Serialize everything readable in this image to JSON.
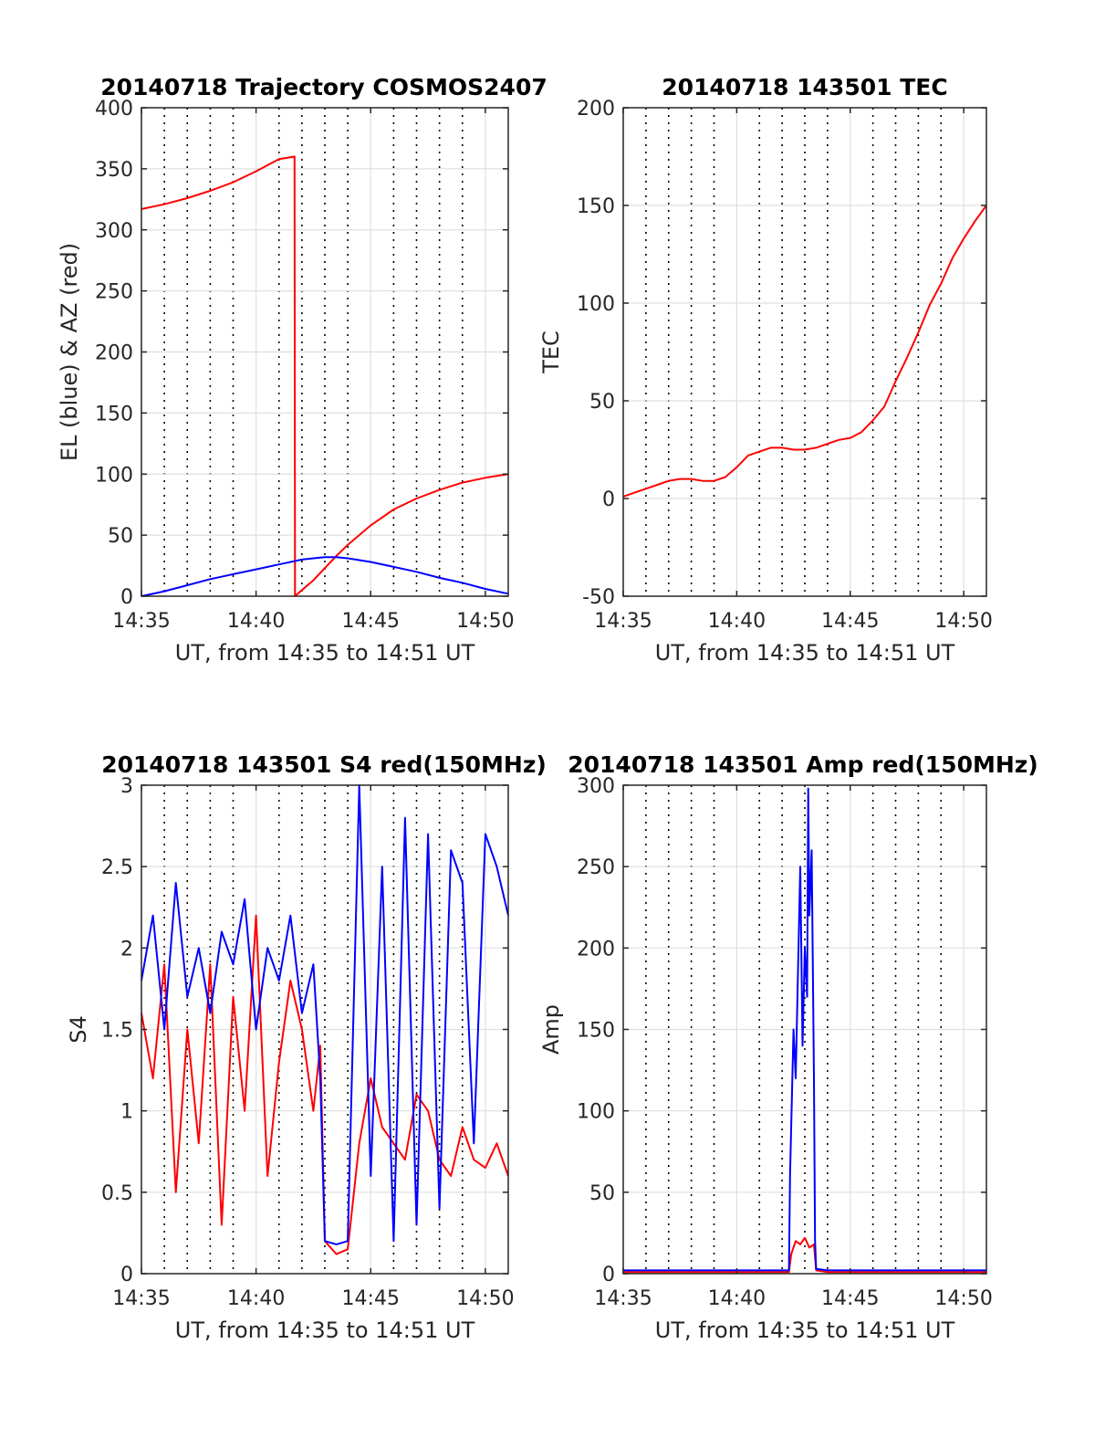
{
  "chart_data": [
    {
      "type": "line",
      "title": "20140718 Trajectory COSMOS2407",
      "xlabel": "UT, from 14:35 to 14:51 UT",
      "ylabel": "EL (blue) & AZ (red)",
      "xlim": [
        0,
        16
      ],
      "ylim": [
        0,
        400
      ],
      "xtick_labels": [
        "14:35",
        "14:40",
        "14:45",
        "14:50"
      ],
      "ytick_labels": [
        "0",
        "50",
        "100",
        "150",
        "200",
        "250",
        "300",
        "350",
        "400"
      ],
      "grid": true,
      "series": [
        {
          "color": "#ff0000",
          "x": [
            0,
            1,
            2,
            3,
            4,
            5,
            6,
            6.68,
            6.7,
            7,
            7.5,
            8,
            8.5,
            9,
            10,
            11,
            12,
            13,
            14,
            15,
            16
          ],
          "y": [
            317,
            321,
            326,
            332,
            339,
            348,
            358,
            360,
            0,
            5,
            13,
            23,
            33,
            42,
            58,
            71,
            80,
            87,
            93,
            97,
            100
          ]
        },
        {
          "color": "#0000ff",
          "x": [
            0,
            1,
            2,
            3,
            4,
            5,
            6,
            7,
            7.5,
            8,
            8.5,
            9,
            10,
            11,
            12,
            13,
            14,
            15,
            16
          ],
          "y": [
            0,
            4,
            9,
            14,
            18,
            22,
            26,
            30,
            31,
            32,
            32,
            31,
            28,
            24,
            20,
            15,
            11,
            6,
            2
          ]
        }
      ]
    },
    {
      "type": "line",
      "title": "20140718 143501 TEC",
      "xlabel": "UT, from 14:35 to 14:51 UT",
      "ylabel": "TEC",
      "xlim": [
        0,
        16
      ],
      "ylim": [
        -50,
        200
      ],
      "xtick_labels": [
        "14:35",
        "14:40",
        "14:45",
        "14:50"
      ],
      "ytick_labels": [
        "-50",
        "0",
        "50",
        "100",
        "150",
        "200"
      ],
      "grid": true,
      "series": [
        {
          "color": "#ff0000",
          "x": [
            0,
            0.5,
            1,
            1.5,
            2,
            2.5,
            3,
            3.5,
            4,
            4.5,
            5,
            5.5,
            6,
            6.5,
            7,
            7.5,
            8,
            8.5,
            9,
            9.5,
            10,
            10.5,
            11,
            11.5,
            12,
            12.5,
            13,
            13.5,
            14,
            14.5,
            15,
            15.5,
            16
          ],
          "y": [
            1,
            3,
            5,
            7,
            9,
            10,
            10,
            9,
            9,
            11,
            16,
            22,
            24,
            26,
            26,
            25,
            25,
            26,
            28,
            30,
            31,
            34,
            40,
            47,
            60,
            72,
            85,
            99,
            110,
            123,
            133,
            142,
            150
          ]
        }
      ]
    },
    {
      "type": "line",
      "title": "20140718 143501 S4 red(150MHz)",
      "xlabel": "UT, from 14:35 to 14:51 UT",
      "ylabel": "S4",
      "xlim": [
        0,
        16
      ],
      "ylim": [
        0,
        3
      ],
      "xtick_labels": [
        "14:35",
        "14:40",
        "14:45",
        "14:50"
      ],
      "ytick_labels": [
        "0",
        "0.5",
        "1",
        "1.5",
        "2",
        "2.5",
        "3"
      ],
      "grid": true,
      "series": [
        {
          "color": "#ff0000",
          "x": [
            0,
            0.5,
            1,
            1.5,
            2,
            2.5,
            3,
            3.5,
            4,
            4.5,
            5,
            5.5,
            6,
            6.5,
            7,
            7.5,
            7.8,
            8,
            8.5,
            9,
            9.5,
            10,
            10.5,
            11,
            11.5,
            12,
            12.5,
            13,
            13.5,
            14,
            14.5,
            15,
            15.5,
            16
          ],
          "y": [
            1.6,
            1.2,
            1.9,
            0.5,
            1.5,
            0.8,
            1.9,
            0.3,
            1.7,
            1.0,
            2.2,
            0.6,
            1.3,
            1.8,
            1.5,
            1.0,
            1.4,
            0.2,
            0.12,
            0.15,
            0.8,
            1.2,
            0.9,
            0.8,
            0.7,
            1.1,
            1.0,
            0.7,
            0.6,
            0.9,
            0.7,
            0.65,
            0.8,
            0.6
          ]
        },
        {
          "color": "#0000ff",
          "x": [
            0,
            0.5,
            1,
            1.5,
            2,
            2.5,
            3,
            3.5,
            4,
            4.5,
            5,
            5.5,
            6,
            6.5,
            7,
            7.5,
            7.8,
            8,
            8.5,
            9,
            9.5,
            10,
            10.5,
            11,
            11.5,
            12,
            12.5,
            13,
            13.5,
            14,
            14.5,
            15,
            15.5,
            16
          ],
          "y": [
            1.8,
            2.2,
            1.5,
            2.4,
            1.7,
            2.0,
            1.6,
            2.1,
            1.9,
            2.3,
            1.5,
            2.0,
            1.8,
            2.2,
            1.6,
            1.9,
            1.2,
            0.2,
            0.18,
            0.2,
            3.0,
            0.6,
            2.5,
            0.2,
            2.8,
            0.3,
            2.7,
            0.4,
            2.6,
            2.4,
            0.8,
            2.7,
            2.5,
            2.2
          ]
        }
      ]
    },
    {
      "type": "line",
      "title": "20140718 143501 Amp red(150MHz)",
      "xlabel": "UT, from 14:35 to 14:51 UT",
      "ylabel": "Amp",
      "xlim": [
        0,
        16
      ],
      "ylim": [
        0,
        300
      ],
      "xtick_labels": [
        "14:35",
        "14:40",
        "14:45",
        "14:50"
      ],
      "ytick_labels": [
        "0",
        "50",
        "100",
        "150",
        "200",
        "250",
        "300"
      ],
      "grid": true,
      "series": [
        {
          "color": "#ff0000",
          "x": [
            0,
            7,
            7.3,
            7.4,
            7.6,
            7.8,
            8.0,
            8.2,
            8.4,
            8.5,
            9,
            16
          ],
          "y": [
            1,
            1,
            1,
            12,
            20,
            18,
            22,
            16,
            18,
            2,
            1,
            1
          ]
        },
        {
          "color": "#0000ff",
          "x": [
            0,
            7,
            7.3,
            7.35,
            7.5,
            7.6,
            7.8,
            7.9,
            8.0,
            8.1,
            8.15,
            8.2,
            8.3,
            8.4,
            8.45,
            8.5,
            9,
            16
          ],
          "y": [
            2,
            2,
            2,
            60,
            150,
            120,
            250,
            140,
            200,
            170,
            298,
            220,
            260,
            120,
            20,
            3,
            2,
            2
          ]
        }
      ]
    }
  ]
}
